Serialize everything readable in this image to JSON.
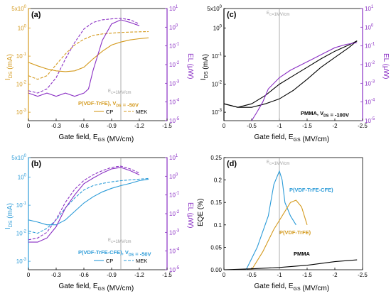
{
  "figure": {
    "panels": [
      "(a)",
      "(b)",
      "(c)",
      "(d)"
    ]
  },
  "colors": {
    "ids_orange": "#d49a1e",
    "ids_blue": "#2b9bd8",
    "el_purple": "#8a2fc4",
    "black": "#000000",
    "gray": "#9a9a9a"
  },
  "chart_data": [
    {
      "panel": "(a)",
      "type": "line",
      "xlabel": "Gate field, E_GS (MV/cm)",
      "ylabel_left": "I_DS (mA)",
      "ylabel_right": "EL (μW)",
      "x_ticks": [
        "0",
        "-0.3",
        "-0.6",
        "-0.9",
        "-1.2",
        "-1.5"
      ],
      "y_left_ticks": [
        "10^-3",
        "10^-2",
        "10^-1",
        "10^0",
        "5x10^0"
      ],
      "y_right_ticks": [
        "10^-5",
        "10^-4",
        "10^-3",
        "10^-2",
        "10^-1",
        "10^0",
        "10^1"
      ],
      "xlim": [
        0,
        -1.5
      ],
      "ylim_left": [
        0.0005,
        5
      ],
      "ylim_right": [
        1e-05,
        10
      ],
      "yscale": "log",
      "annotation_ec": "E_C=1MV/cm",
      "legend_title": "P(VDF-TrFE), V_DS = -50V",
      "legend_items": [
        "CP",
        "MEK"
      ],
      "series": [
        {
          "name": "CP",
          "axis": "left",
          "style": "solid",
          "x": [
            0,
            -0.1,
            -0.2,
            -0.3,
            -0.4,
            -0.5,
            -0.6,
            -0.7,
            -0.8,
            -0.9,
            -1.0,
            -1.1,
            -1.2,
            -1.3
          ],
          "y": [
            0.06,
            0.045,
            0.035,
            0.03,
            0.028,
            0.03,
            0.04,
            0.08,
            0.15,
            0.25,
            0.32,
            0.38,
            0.42,
            0.45
          ]
        },
        {
          "name": "MEK",
          "axis": "left",
          "style": "dashed",
          "x": [
            0,
            -0.1,
            -0.2,
            -0.3,
            -0.4,
            -0.5,
            -0.6,
            -0.7,
            -0.8,
            -0.9,
            -1.0,
            -1.1,
            -1.2,
            -1.3
          ],
          "y": [
            0.02,
            0.015,
            0.02,
            0.05,
            0.12,
            0.25,
            0.4,
            0.55,
            0.62,
            0.66,
            0.7,
            0.72,
            0.74,
            0.75
          ]
        },
        {
          "name": "EL CP",
          "axis": "right",
          "style": "solid",
          "x": [
            0,
            -0.1,
            -0.2,
            -0.3,
            -0.4,
            -0.5,
            -0.6,
            -0.65,
            -0.7,
            -0.8,
            -0.9,
            -1.0,
            -1.1,
            -1.2
          ],
          "y": [
            0.0003,
            0.0002,
            0.0003,
            0.0002,
            0.0003,
            0.0002,
            0.0003,
            0.0005,
            0.005,
            0.2,
            1.5,
            2.5,
            1.8,
            1.2
          ]
        },
        {
          "name": "EL MEK",
          "axis": "right",
          "style": "dashed",
          "x": [
            0,
            -0.1,
            -0.2,
            -0.3,
            -0.4,
            -0.5,
            -0.6,
            -0.7,
            -0.8,
            -0.9,
            -1.0,
            -1.1,
            -1.2
          ],
          "y": [
            0.0004,
            0.0003,
            0.0005,
            0.002,
            0.02,
            0.15,
            0.8,
            1.8,
            2.5,
            2.8,
            3.0,
            2.5,
            1.5
          ]
        }
      ]
    },
    {
      "panel": "(b)",
      "type": "line",
      "xlabel": "Gate field, E_GS (MV/cm)",
      "ylabel_left": "I_DS (mA)",
      "ylabel_right": "EL (μW)",
      "x_ticks": [
        "0",
        "-0.3",
        "-0.6",
        "-0.9",
        "-1.2",
        "-1.5"
      ],
      "y_left_ticks": [
        "10^-3",
        "10^-2",
        "10^-1",
        "10^0",
        "5x10^0"
      ],
      "y_right_ticks": [
        "10^-5",
        "10^-4",
        "10^-3",
        "10^-2",
        "10^-1",
        "10^0",
        "10^1"
      ],
      "xlim": [
        0,
        -1.5
      ],
      "ylim_left": [
        0.0005,
        5
      ],
      "ylim_right": [
        1e-05,
        10
      ],
      "yscale": "log",
      "annotation_ec": "E_C=1MV/cm",
      "legend_title": "P(VDF-TrFE-CFE), V_DS = -50V",
      "legend_items": [
        "CP",
        "MEK"
      ],
      "series": [
        {
          "name": "CP",
          "axis": "left",
          "style": "solid",
          "x": [
            0,
            -0.1,
            -0.2,
            -0.3,
            -0.4,
            -0.5,
            -0.6,
            -0.7,
            -0.8,
            -0.9,
            -1.0,
            -1.1,
            -1.2,
            -1.3
          ],
          "y": [
            0.03,
            0.025,
            0.02,
            0.02,
            0.03,
            0.06,
            0.12,
            0.2,
            0.3,
            0.4,
            0.5,
            0.6,
            0.75,
            0.85
          ]
        },
        {
          "name": "MEK",
          "axis": "left",
          "style": "dashed",
          "x": [
            0,
            -0.1,
            -0.2,
            -0.3,
            -0.4,
            -0.5,
            -0.6,
            -0.7,
            -0.8,
            -0.9,
            -1.0,
            -1.1,
            -1.2,
            -1.3
          ],
          "y": [
            0.012,
            0.01,
            0.015,
            0.03,
            0.08,
            0.18,
            0.35,
            0.5,
            0.6,
            0.68,
            0.75,
            0.8,
            0.85,
            0.9
          ]
        },
        {
          "name": "EL CP",
          "axis": "right",
          "style": "solid",
          "x": [
            0,
            -0.1,
            -0.2,
            -0.3,
            -0.4,
            -0.5,
            -0.6,
            -0.7,
            -0.8,
            -0.9,
            -1.0,
            -1.1,
            -1.2
          ],
          "y": [
            0.0003,
            0.0003,
            0.0005,
            0.002,
            0.02,
            0.1,
            0.4,
            0.8,
            1.5,
            2.5,
            3.0,
            2.0,
            1.2
          ]
        },
        {
          "name": "EL MEK",
          "axis": "right",
          "style": "dashed",
          "x": [
            0,
            -0.1,
            -0.2,
            -0.3,
            -0.4,
            -0.5,
            -0.6,
            -0.7,
            -0.8,
            -0.9,
            -1.0,
            -1.1,
            -1.2
          ],
          "y": [
            0.0004,
            0.0005,
            0.001,
            0.005,
            0.04,
            0.2,
            0.6,
            1.2,
            2.0,
            3.0,
            3.5,
            2.5,
            1.5
          ]
        }
      ]
    },
    {
      "panel": "(c)",
      "type": "line",
      "xlabel": "Gate field, E_GS (MV/cm)",
      "ylabel_left": "I_DS (mA)",
      "ylabel_right": "EL (μW)",
      "x_ticks": [
        "0",
        "-0.5",
        "-1",
        "-1.5",
        "-2",
        "-2.5"
      ],
      "y_left_ticks": [
        "10^-3",
        "10^-2",
        "10^-1",
        "10^0",
        "5x10^0"
      ],
      "y_right_ticks": [
        "10^-5",
        "10^-4",
        "10^-3",
        "10^-2",
        "10^-1",
        "10^0",
        "10^1"
      ],
      "xlim": [
        0,
        -2.5
      ],
      "ylim_left": [
        0.0005,
        5
      ],
      "ylim_right": [
        1e-05,
        10
      ],
      "yscale": "log",
      "annotation_ec": "E_C=1MV/cm",
      "legend_title": "PMMA, V_DS = -100V",
      "series": [
        {
          "name": "I_DS forward",
          "axis": "left",
          "style": "solid",
          "x": [
            0,
            -0.25,
            -0.5,
            -0.75,
            -1.0,
            -1.25,
            -1.5,
            -1.75,
            -2.0,
            -2.25,
            -2.4
          ],
          "y": [
            0.002,
            0.0015,
            0.002,
            0.004,
            0.01,
            0.02,
            0.04,
            0.08,
            0.15,
            0.25,
            0.35
          ]
        },
        {
          "name": "I_DS reverse",
          "axis": "left",
          "style": "solid",
          "x": [
            -2.4,
            -2.25,
            -2.0,
            -1.75,
            -1.5,
            -1.25,
            -1.0,
            -0.75,
            -0.5,
            -0.25,
            0
          ],
          "y": [
            0.35,
            0.2,
            0.09,
            0.04,
            0.015,
            0.006,
            0.003,
            0.002,
            0.0015,
            0.0015,
            0.002
          ]
        },
        {
          "name": "EL",
          "axis": "right",
          "style": "solid",
          "x": [
            -0.5,
            -0.6,
            -0.7,
            -0.8,
            -1.0,
            -1.2,
            -1.4,
            -1.6,
            -1.8,
            -2.0,
            -2.2,
            -2.4
          ],
          "y": [
            1e-05,
            3e-05,
            0.0001,
            0.0005,
            0.002,
            0.005,
            0.01,
            0.02,
            0.04,
            0.08,
            0.12,
            0.15
          ]
        }
      ]
    },
    {
      "panel": "(d)",
      "type": "line",
      "xlabel": "Gate field, E_GS (MV/cm)",
      "ylabel": "EQE (%)",
      "x_ticks": [
        "0",
        "-0.5",
        "-1",
        "-1.5",
        "-2",
        "-2.5"
      ],
      "y_ticks": [
        "0.00",
        "0.05",
        "0.1",
        "0.15",
        "0.2",
        "0.25"
      ],
      "xlim": [
        0,
        -2.5
      ],
      "ylim": [
        0,
        0.25
      ],
      "annotation_ec": "E_C=1MV/cm",
      "labels": [
        "P(VDF-TrFE-CFE)",
        "P(VDF-TrFE)",
        "PMMA"
      ],
      "series": [
        {
          "name": "P(VDF-TrFE-CFE)",
          "style": "solid",
          "x": [
            -0.4,
            -0.6,
            -0.8,
            -0.9,
            -1.0,
            -1.05,
            -1.1,
            -1.2,
            -1.3
          ],
          "y": [
            0.0,
            0.05,
            0.12,
            0.19,
            0.22,
            0.2,
            0.15,
            0.12,
            0.1
          ]
        },
        {
          "name": "P(VDF-TrFE)",
          "style": "solid",
          "x": [
            -0.5,
            -0.7,
            -0.9,
            -1.0,
            -1.1,
            -1.2,
            -1.3,
            -1.4,
            -1.5
          ],
          "y": [
            0.0,
            0.04,
            0.09,
            0.11,
            0.13,
            0.15,
            0.155,
            0.14,
            0.1
          ]
        },
        {
          "name": "PMMA",
          "style": "solid",
          "x": [
            0,
            -0.5,
            -1.0,
            -1.5,
            -2.0,
            -2.4
          ],
          "y": [
            0.0,
            0.002,
            0.005,
            0.01,
            0.018,
            0.022
          ]
        }
      ]
    }
  ]
}
